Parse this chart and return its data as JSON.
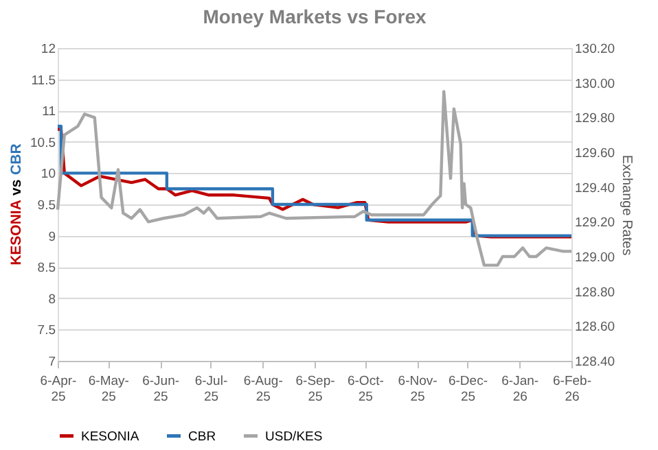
{
  "chart_data": {
    "type": "line",
    "title": "Money Markets vs Forex",
    "ylabel": "KESONIA vs CBR",
    "y2label": "Exchange Rates",
    "xlim": [
      "2025-04-06",
      "2026-02-06"
    ],
    "xticks": [
      {
        "value": "2025-04-06",
        "label": "6-Apr-25"
      },
      {
        "value": "2025-05-06",
        "label": "6-May-25"
      },
      {
        "value": "2025-06-06",
        "label": "6-Jun-25"
      },
      {
        "value": "2025-07-06",
        "label": "6-Jul-25"
      },
      {
        "value": "2025-08-06",
        "label": "6-Aug-25"
      },
      {
        "value": "2025-09-06",
        "label": "6-Sep-25"
      },
      {
        "value": "2025-10-06",
        "label": "6-Oct-25"
      },
      {
        "value": "2025-11-06",
        "label": "6-Nov-25"
      },
      {
        "value": "2025-12-06",
        "label": "6-Dec-25"
      },
      {
        "value": "2026-01-06",
        "label": "6-Jan-26"
      },
      {
        "value": "2026-02-06",
        "label": "6-Feb-26"
      }
    ],
    "ylim": [
      7,
      12
    ],
    "yticks": [
      7,
      7.5,
      8,
      8.5,
      9,
      9.5,
      10,
      10.5,
      11,
      11.5,
      12
    ],
    "y2lim": [
      128.4,
      130.2
    ],
    "y2ticks": [
      {
        "value": 128.4,
        "label": "128.40"
      },
      {
        "value": 128.6,
        "label": "128.60"
      },
      {
        "value": 128.8,
        "label": "128.80"
      },
      {
        "value": 129.0,
        "label": "129.00"
      },
      {
        "value": 129.2,
        "label": "129.20"
      },
      {
        "value": 129.4,
        "label": "129.40"
      },
      {
        "value": 129.6,
        "label": "129.60"
      },
      {
        "value": 129.8,
        "label": "129.80"
      },
      {
        "value": 130.0,
        "label": "130.00"
      },
      {
        "value": 130.2,
        "label": "130.20"
      }
    ],
    "grid": "y",
    "legend": "bottom",
    "series": [
      {
        "name": "KESONIA",
        "color": "#c00000",
        "x": [
          "2025-04-06",
          "2025-04-08",
          "2025-04-10",
          "2025-04-20",
          "2025-05-01",
          "2025-05-20",
          "2025-05-28",
          "2025-06-05",
          "2025-06-10",
          "2025-06-15",
          "2025-06-25",
          "2025-07-05",
          "2025-07-20",
          "2025-08-10",
          "2025-08-12",
          "2025-08-18",
          "2025-08-30",
          "2025-09-05",
          "2025-09-20",
          "2025-10-01",
          "2025-10-06",
          "2025-10-08",
          "2025-10-20",
          "2025-11-10",
          "2025-12-05",
          "2025-12-09",
          "2025-12-11",
          "2025-12-20",
          "2026-02-06"
        ],
        "values": [
          10.7,
          10.7,
          10.0,
          9.8,
          9.95,
          9.85,
          9.9,
          9.75,
          9.75,
          9.65,
          9.72,
          9.65,
          9.65,
          9.6,
          9.5,
          9.42,
          9.58,
          9.5,
          9.45,
          9.53,
          9.53,
          9.25,
          9.22,
          9.22,
          9.22,
          9.25,
          9.0,
          8.98,
          8.98
        ]
      },
      {
        "name": "CBR",
        "color": "#2e75b6",
        "type": "step",
        "x": [
          "2025-04-06",
          "2025-04-08",
          "2025-06-10",
          "2025-08-12",
          "2025-10-07",
          "2025-12-09",
          "2026-02-06"
        ],
        "values": [
          10.75,
          10.0,
          9.75,
          9.5,
          9.25,
          9.0,
          9.0
        ]
      },
      {
        "name": "USD/KES",
        "color": "#a6a6a6",
        "axis": "y2",
        "x": [
          "2025-04-06",
          "2025-04-10",
          "2025-04-18",
          "2025-04-22",
          "2025-04-28",
          "2025-05-02",
          "2025-05-08",
          "2025-05-12",
          "2025-05-15",
          "2025-05-20",
          "2025-05-25",
          "2025-05-30",
          "2025-06-08",
          "2025-06-20",
          "2025-06-28",
          "2025-07-02",
          "2025-07-05",
          "2025-07-10",
          "2025-08-05",
          "2025-08-10",
          "2025-08-20",
          "2025-09-30",
          "2025-10-05",
          "2025-10-10",
          "2025-11-10",
          "2025-11-15",
          "2025-11-20",
          "2025-11-22",
          "2025-11-26",
          "2025-11-28",
          "2025-12-02",
          "2025-12-03",
          "2025-12-04",
          "2025-12-05",
          "2025-12-08",
          "2025-12-12",
          "2025-12-16",
          "2025-12-24",
          "2025-12-27",
          "2026-01-03",
          "2026-01-08",
          "2026-01-12",
          "2026-01-16",
          "2026-01-22",
          "2026-02-01",
          "2026-02-06"
        ],
        "values": [
          129.27,
          129.7,
          129.75,
          129.82,
          129.8,
          129.34,
          129.28,
          129.5,
          129.25,
          129.22,
          129.27,
          129.2,
          129.22,
          129.24,
          129.28,
          129.25,
          129.28,
          129.22,
          129.23,
          129.25,
          129.22,
          129.23,
          129.26,
          129.24,
          129.24,
          129.3,
          129.35,
          129.95,
          129.45,
          129.85,
          129.65,
          129.28,
          129.42,
          129.3,
          129.28,
          129.1,
          128.95,
          128.95,
          129.0,
          129.0,
          129.05,
          129.0,
          129.0,
          129.05,
          129.03,
          129.03
        ]
      }
    ]
  }
}
